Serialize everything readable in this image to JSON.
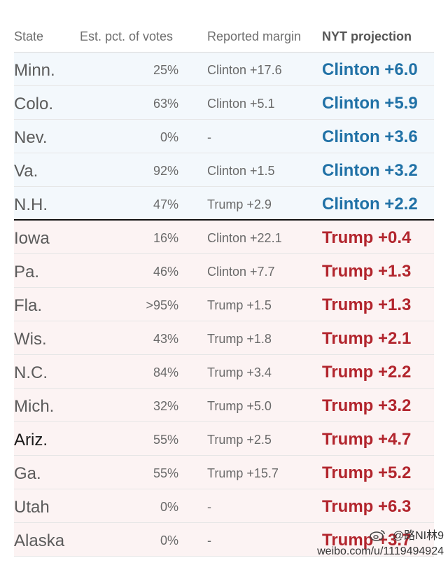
{
  "header": {
    "state": "State",
    "pct": "Est. pct. of votes",
    "margin": "Reported margin",
    "projection": "NYT projection"
  },
  "rows": [
    {
      "state": "Minn.",
      "pct": "25%",
      "margin": "Clinton +17.6",
      "projection": "Clinton +6.0",
      "party": "clinton"
    },
    {
      "state": "Colo.",
      "pct": "63%",
      "margin": "Clinton +5.1",
      "projection": "Clinton +5.9",
      "party": "clinton"
    },
    {
      "state": "Nev.",
      "pct": "0%",
      "margin": "-",
      "projection": "Clinton +3.6",
      "party": "clinton"
    },
    {
      "state": "Va.",
      "pct": "92%",
      "margin": "Clinton +1.5",
      "projection": "Clinton +3.2",
      "party": "clinton"
    },
    {
      "state": "N.H.",
      "pct": "47%",
      "margin": "Trump +2.9",
      "projection": "Clinton +2.2",
      "party": "clinton"
    },
    {
      "state": "Iowa",
      "pct": "16%",
      "margin": "Clinton +22.1",
      "projection": "Trump +0.4",
      "party": "trump"
    },
    {
      "state": "Pa.",
      "pct": "46%",
      "margin": "Clinton +7.7",
      "projection": "Trump +1.3",
      "party": "trump"
    },
    {
      "state": "Fla.",
      "pct": ">95%",
      "margin": "Trump +1.5",
      "projection": "Trump +1.3",
      "party": "trump"
    },
    {
      "state": "Wis.",
      "pct": "43%",
      "margin": "Trump +1.8",
      "projection": "Trump +2.1",
      "party": "trump"
    },
    {
      "state": "N.C.",
      "pct": "84%",
      "margin": "Trump +3.4",
      "projection": "Trump +2.2",
      "party": "trump"
    },
    {
      "state": "Mich.",
      "pct": "32%",
      "margin": "Trump +5.0",
      "projection": "Trump +3.2",
      "party": "trump"
    },
    {
      "state": "Ariz.",
      "pct": "55%",
      "margin": "Trump +2.5",
      "projection": "Trump +4.7",
      "party": "trump"
    },
    {
      "state": "Ga.",
      "pct": "55%",
      "margin": "Trump +15.7",
      "projection": "Trump +5.2",
      "party": "trump"
    },
    {
      "state": "Utah",
      "pct": "0%",
      "margin": "-",
      "projection": "Trump +6.3",
      "party": "trump"
    },
    {
      "state": "Alaska",
      "pct": "0%",
      "margin": "-",
      "projection": "Trump +3.7",
      "party": "trump"
    }
  ],
  "colors": {
    "clinton": "#2071a6",
    "trump": "#b2252d"
  },
  "watermark": {
    "handle": "@路NI林9",
    "url": "weibo.com/u/1119494924"
  }
}
